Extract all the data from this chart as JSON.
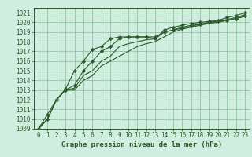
{
  "xlabel": "Graphe pression niveau de la mer (hPa)",
  "xlim": [
    -0.5,
    23.5
  ],
  "ylim": [
    1009,
    1021.5
  ],
  "yticks": [
    1009,
    1010,
    1011,
    1012,
    1013,
    1014,
    1015,
    1016,
    1017,
    1018,
    1019,
    1020,
    1021
  ],
  "xticks": [
    0,
    1,
    2,
    3,
    4,
    5,
    6,
    7,
    8,
    9,
    10,
    11,
    12,
    13,
    14,
    15,
    16,
    17,
    18,
    19,
    20,
    21,
    22,
    23
  ],
  "bg_color": "#d0eee0",
  "grid_color": "#88bb99",
  "line_color": "#2d5a2d",
  "series": [
    [
      1009,
      1010,
      1012,
      1013,
      1013.5,
      1015,
      1016,
      1017,
      1017.5,
      1018.3,
      1018.5,
      1018.5,
      1018.5,
      1018.3,
      1019.2,
      1019.5,
      1019.7,
      1019.9,
      1020.0,
      1020.1,
      1020.2,
      1020.5,
      1020.7,
      1021.0
    ],
    [
      1009,
      1010,
      1012,
      1013,
      1013.2,
      1014.5,
      1015,
      1016,
      1016.5,
      1017.5,
      1017.8,
      1018.0,
      1018.2,
      1018.3,
      1019.0,
      1019.2,
      1019.5,
      1019.7,
      1019.8,
      1020.0,
      1020.1,
      1020.3,
      1020.5,
      1020.8
    ],
    [
      1009,
      1010,
      1012,
      1013,
      1013.0,
      1014.0,
      1014.5,
      1015.5,
      1016.0,
      1016.5,
      1017.0,
      1017.5,
      1017.8,
      1018.0,
      1018.5,
      1019.0,
      1019.3,
      1019.5,
      1019.7,
      1019.9,
      1020.0,
      1020.2,
      1020.4,
      1020.6
    ],
    [
      1009,
      1010.5,
      1012,
      1013.1,
      1015.0,
      1016.0,
      1017.2,
      1017.5,
      1018.3,
      1018.5,
      1018.5,
      1018.5,
      1018.5,
      1018.5,
      1019.0,
      1019.2,
      1019.4,
      1019.6,
      1019.8,
      1020.0,
      1020.1,
      1020.2,
      1020.4,
      1020.7
    ]
  ],
  "marker_series": [
    0,
    3
  ],
  "marker": "D",
  "marker_size": 2.2,
  "linewidth": 0.8,
  "tick_fontsize": 5.5,
  "xlabel_fontsize": 6.5
}
